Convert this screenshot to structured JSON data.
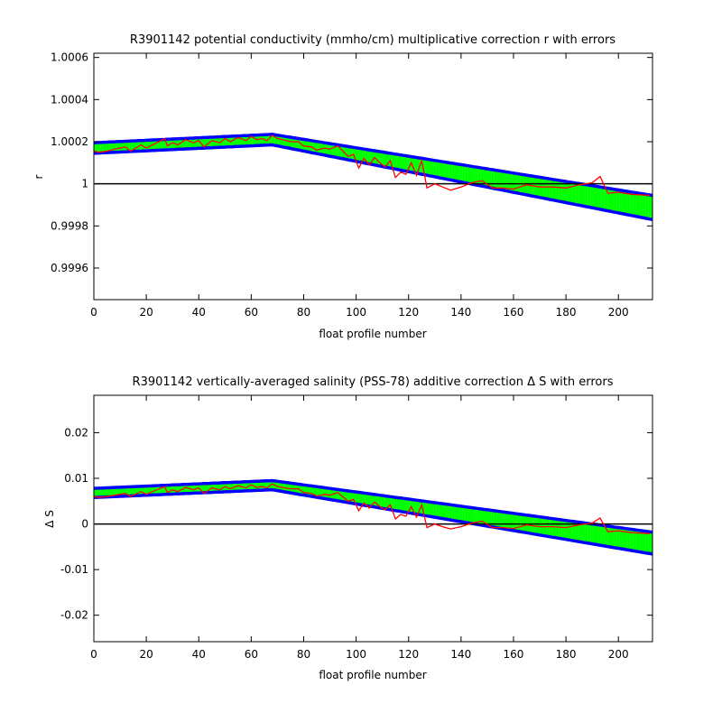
{
  "colors": {
    "error_band_outline": "#0000ff",
    "error_band_fill": "#00ff00",
    "measured_line": "#ff0000",
    "reference_line": "#000000",
    "axes": "#000000",
    "background": "#ffffff"
  },
  "chart_data": [
    {
      "type": "line",
      "title": "R3901142 potential conductivity (mmho/cm) multiplicative correction r with errors",
      "xlabel": "float profile number",
      "ylabel": "r",
      "xlim": [
        0,
        213
      ],
      "ylim": [
        0.99945,
        1.00062
      ],
      "xticks": [
        0,
        20,
        40,
        60,
        80,
        100,
        120,
        140,
        160,
        180,
        200
      ],
      "xtick_labels": [
        "0",
        "20",
        "40",
        "60",
        "80",
        "100",
        "120",
        "140",
        "160",
        "180",
        "200"
      ],
      "yticks": [
        0.9996,
        0.9998,
        1.0,
        1.0002,
        1.0004,
        1.0006
      ],
      "ytick_labels": [
        "0.9996",
        "0.9998",
        "1",
        "1.0002",
        "1.0004",
        "1.0006"
      ],
      "grid": false,
      "reference_line": 1.0,
      "fit_center": {
        "x": [
          0,
          68,
          213
        ],
        "y": [
          1.000163,
          1.00021,
          0.999885
        ]
      },
      "fit_upper": {
        "x": [
          0,
          68,
          213
        ],
        "y": [
          1.000195,
          1.000235,
          0.999945
        ]
      },
      "fit_lower": {
        "x": [
          0,
          68,
          213
        ],
        "y": [
          1.000145,
          1.000185,
          0.99983
        ]
      },
      "measured": {
        "x": [
          0,
          2,
          5,
          8,
          12,
          14,
          18,
          20,
          24,
          27,
          28,
          30,
          32,
          35,
          38,
          40,
          42,
          45,
          48,
          50,
          52,
          55,
          58,
          60,
          62,
          64,
          66,
          68,
          70,
          72,
          75,
          78,
          80,
          83,
          85,
          88,
          90,
          93,
          95,
          97,
          99,
          101,
          103,
          105,
          107,
          109,
          111,
          113,
          115,
          117,
          119,
          121,
          123,
          125,
          127,
          130,
          133,
          136,
          140,
          144,
          148,
          152,
          156,
          160,
          165,
          170,
          175,
          180,
          185,
          190,
          193,
          196,
          200,
          205,
          212
        ],
        "y": [
          1.000155,
          1.00015,
          1.000155,
          1.000165,
          1.000175,
          1.000155,
          1.000185,
          1.00017,
          1.000195,
          1.000215,
          1.00018,
          1.000195,
          1.000185,
          1.00021,
          1.000195,
          1.000205,
          1.000175,
          1.000205,
          1.000195,
          1.000215,
          1.0002,
          1.00022,
          1.000205,
          1.000225,
          1.00021,
          1.000215,
          1.000205,
          1.00023,
          1.000215,
          1.00021,
          1.0002,
          1.0002,
          1.00018,
          1.000175,
          1.00016,
          1.00017,
          1.000165,
          1.00018,
          1.000155,
          1.00013,
          1.00014,
          1.000075,
          1.00012,
          1.00009,
          1.000125,
          1.0001,
          1.00008,
          1.00011,
          1.00003,
          1.000055,
          1.000045,
          1.0001,
          1.00004,
          1.00011,
          0.99998,
          1.0,
          0.999985,
          0.99997,
          0.999985,
          1.000005,
          1.000015,
          0.99998,
          0.99998,
          0.999975,
          0.999995,
          0.999985,
          0.999985,
          0.99998,
          0.999995,
          1.000005,
          1.000035,
          0.999955,
          0.99996,
          0.99995,
          0.999945
        ]
      }
    },
    {
      "type": "line",
      "title": "R3901142 vertically-averaged salinity (PSS-78) additive correction Δ S with errors",
      "xlabel": "float profile number",
      "ylabel": "Δ S",
      "xlim": [
        0,
        213
      ],
      "ylim": [
        -0.0258,
        0.0282
      ],
      "xticks": [
        0,
        20,
        40,
        60,
        80,
        100,
        120,
        140,
        160,
        180,
        200
      ],
      "xtick_labels": [
        "0",
        "20",
        "40",
        "60",
        "80",
        "100",
        "120",
        "140",
        "160",
        "180",
        "200"
      ],
      "yticks": [
        -0.02,
        -0.01,
        0,
        0.01,
        0.02
      ],
      "ytick_labels": [
        "-0.02",
        "-0.01",
        "0",
        "0.01",
        "0.02"
      ],
      "grid": false,
      "reference_line": 0,
      "fit_center": {
        "x": [
          0,
          68,
          213
        ],
        "y": [
          0.0068,
          0.0085,
          -0.0043
        ]
      },
      "fit_upper": {
        "x": [
          0,
          68,
          213
        ],
        "y": [
          0.0078,
          0.0095,
          -0.0018
        ]
      },
      "fit_lower": {
        "x": [
          0,
          68,
          213
        ],
        "y": [
          0.0058,
          0.0075,
          -0.0066
        ]
      },
      "measured": {
        "x": [
          0,
          2,
          5,
          8,
          12,
          14,
          18,
          20,
          24,
          27,
          28,
          30,
          32,
          35,
          38,
          40,
          42,
          45,
          48,
          50,
          52,
          55,
          58,
          60,
          62,
          64,
          66,
          68,
          70,
          72,
          75,
          78,
          80,
          83,
          85,
          88,
          90,
          93,
          95,
          97,
          99,
          101,
          103,
          105,
          107,
          109,
          111,
          113,
          115,
          117,
          119,
          121,
          123,
          125,
          127,
          130,
          133,
          136,
          140,
          144,
          148,
          152,
          156,
          160,
          165,
          170,
          175,
          180,
          185,
          190,
          193,
          196,
          200,
          205,
          212
        ],
        "y": [
          0.006,
          0.0058,
          0.006,
          0.0063,
          0.0067,
          0.006,
          0.0071,
          0.0065,
          0.0075,
          0.0082,
          0.0069,
          0.0075,
          0.0071,
          0.008,
          0.0075,
          0.0079,
          0.0067,
          0.0079,
          0.0075,
          0.0082,
          0.0077,
          0.0084,
          0.0079,
          0.0086,
          0.008,
          0.0082,
          0.0079,
          0.0088,
          0.0082,
          0.008,
          0.0077,
          0.0077,
          0.0069,
          0.0067,
          0.0061,
          0.0065,
          0.0063,
          0.0069,
          0.0059,
          0.005,
          0.0054,
          0.0029,
          0.0046,
          0.0035,
          0.0048,
          0.0038,
          0.0031,
          0.0042,
          0.0011,
          0.0021,
          0.0017,
          0.0038,
          0.0015,
          0.0042,
          -0.0008,
          0.0,
          -0.0006,
          -0.0011,
          -0.0006,
          0.0002,
          0.0006,
          -0.0008,
          -0.0008,
          -0.001,
          -0.0002,
          -0.0006,
          -0.0006,
          -0.0008,
          -0.0002,
          0.0002,
          0.0013,
          -0.0017,
          -0.0015,
          -0.0019,
          -0.0021
        ]
      }
    }
  ]
}
